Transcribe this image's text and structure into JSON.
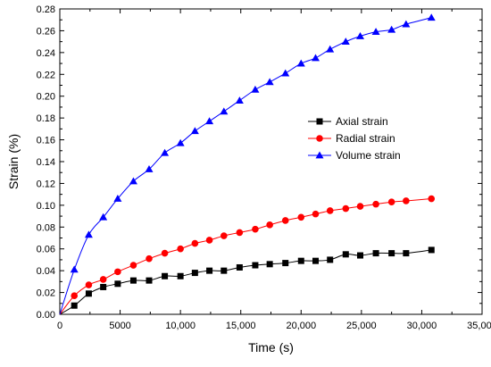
{
  "chart_data": {
    "type": "line",
    "title": "",
    "xlabel": "Time (s)",
    "ylabel": "Strain (%)",
    "xlim": [
      0,
      35000
    ],
    "ylim": [
      0,
      0.28
    ],
    "xticks": [
      0,
      5000,
      10000,
      15000,
      20000,
      25000,
      30000,
      35000
    ],
    "xtick_labels": [
      "0",
      "5000",
      "10,000",
      "15,000",
      "20,000",
      "25,000",
      "30,000",
      "35,000"
    ],
    "yticks": [
      0,
      0.02,
      0.04,
      0.06,
      0.08,
      0.1,
      0.12,
      0.14,
      0.16,
      0.18,
      0.2,
      0.22,
      0.24,
      0.26,
      0.28
    ],
    "ytick_labels": [
      "0.00",
      "0.02",
      "0.04",
      "0.06",
      "0.08",
      "0.10",
      "0.12",
      "0.14",
      "0.16",
      "0.18",
      "0.20",
      "0.22",
      "0.24",
      "0.26",
      "0.28"
    ],
    "grid": false,
    "legend_position": "center-right",
    "series": [
      {
        "name": "Axial strain",
        "color": "#000000",
        "marker": "square",
        "x": [
          0,
          1200,
          2400,
          3600,
          4800,
          6100,
          7400,
          8700,
          10000,
          11200,
          12400,
          13600,
          14900,
          16200,
          17400,
          18700,
          20000,
          21200,
          22400,
          23700,
          24900,
          26200,
          27500,
          28700,
          30800
        ],
        "y": [
          0,
          0.008,
          0.019,
          0.025,
          0.028,
          0.031,
          0.031,
          0.035,
          0.035,
          0.038,
          0.04,
          0.04,
          0.043,
          0.045,
          0.046,
          0.047,
          0.049,
          0.049,
          0.05,
          0.055,
          0.054,
          0.056,
          0.056,
          0.056,
          0.059
        ]
      },
      {
        "name": "Radial strain",
        "color": "#ff0000",
        "marker": "circle",
        "x": [
          0,
          1200,
          2400,
          3600,
          4800,
          6100,
          7400,
          8700,
          10000,
          11200,
          12400,
          13600,
          14900,
          16200,
          17400,
          18700,
          20000,
          21200,
          22400,
          23700,
          24900,
          26200,
          27500,
          28700,
          30800
        ],
        "y": [
          0,
          0.017,
          0.027,
          0.032,
          0.039,
          0.045,
          0.051,
          0.056,
          0.06,
          0.065,
          0.068,
          0.072,
          0.075,
          0.078,
          0.082,
          0.086,
          0.089,
          0.092,
          0.095,
          0.097,
          0.099,
          0.101,
          0.103,
          0.104,
          0.106
        ]
      },
      {
        "name": "Volume strain",
        "color": "#0000ff",
        "marker": "triangle",
        "x": [
          0,
          1200,
          2400,
          3600,
          4800,
          6100,
          7400,
          8700,
          10000,
          11200,
          12400,
          13600,
          14900,
          16200,
          17400,
          18700,
          20000,
          21200,
          22400,
          23700,
          24900,
          26200,
          27500,
          28700,
          30800
        ],
        "y": [
          0,
          0.041,
          0.073,
          0.089,
          0.106,
          0.122,
          0.133,
          0.148,
          0.157,
          0.168,
          0.177,
          0.186,
          0.196,
          0.206,
          0.213,
          0.221,
          0.23,
          0.235,
          0.243,
          0.25,
          0.255,
          0.259,
          0.261,
          0.266,
          0.272
        ]
      }
    ]
  }
}
